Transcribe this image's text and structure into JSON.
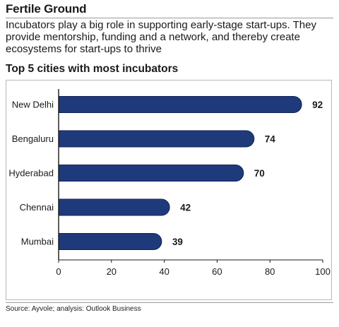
{
  "header": {
    "title": "Fertile Ground",
    "subtitle": "Incubators play a big role in supporting early-stage start-ups. They provide mentorship, funding and a network, and thereby create ecosystems for start-ups to thrive"
  },
  "chart_data": {
    "type": "bar",
    "orientation": "horizontal",
    "title": "Top 5 cities with most incubators",
    "categories": [
      "New Delhi",
      "Bengaluru",
      "Hyderabad",
      "Chennai",
      "Mumbai"
    ],
    "values": [
      92,
      74,
      70,
      42,
      39
    ],
    "xlim": [
      0,
      100
    ],
    "xticks": [
      0,
      20,
      40,
      60,
      80,
      100
    ],
    "grid": false,
    "legend": "none",
    "colors": {
      "bar": "#1f3a7a",
      "bar_edge": "#0f2256",
      "axis": "#1a1a1a"
    }
  },
  "footer": {
    "source": "Source: Ayvole; analysis: Outlook Business"
  }
}
